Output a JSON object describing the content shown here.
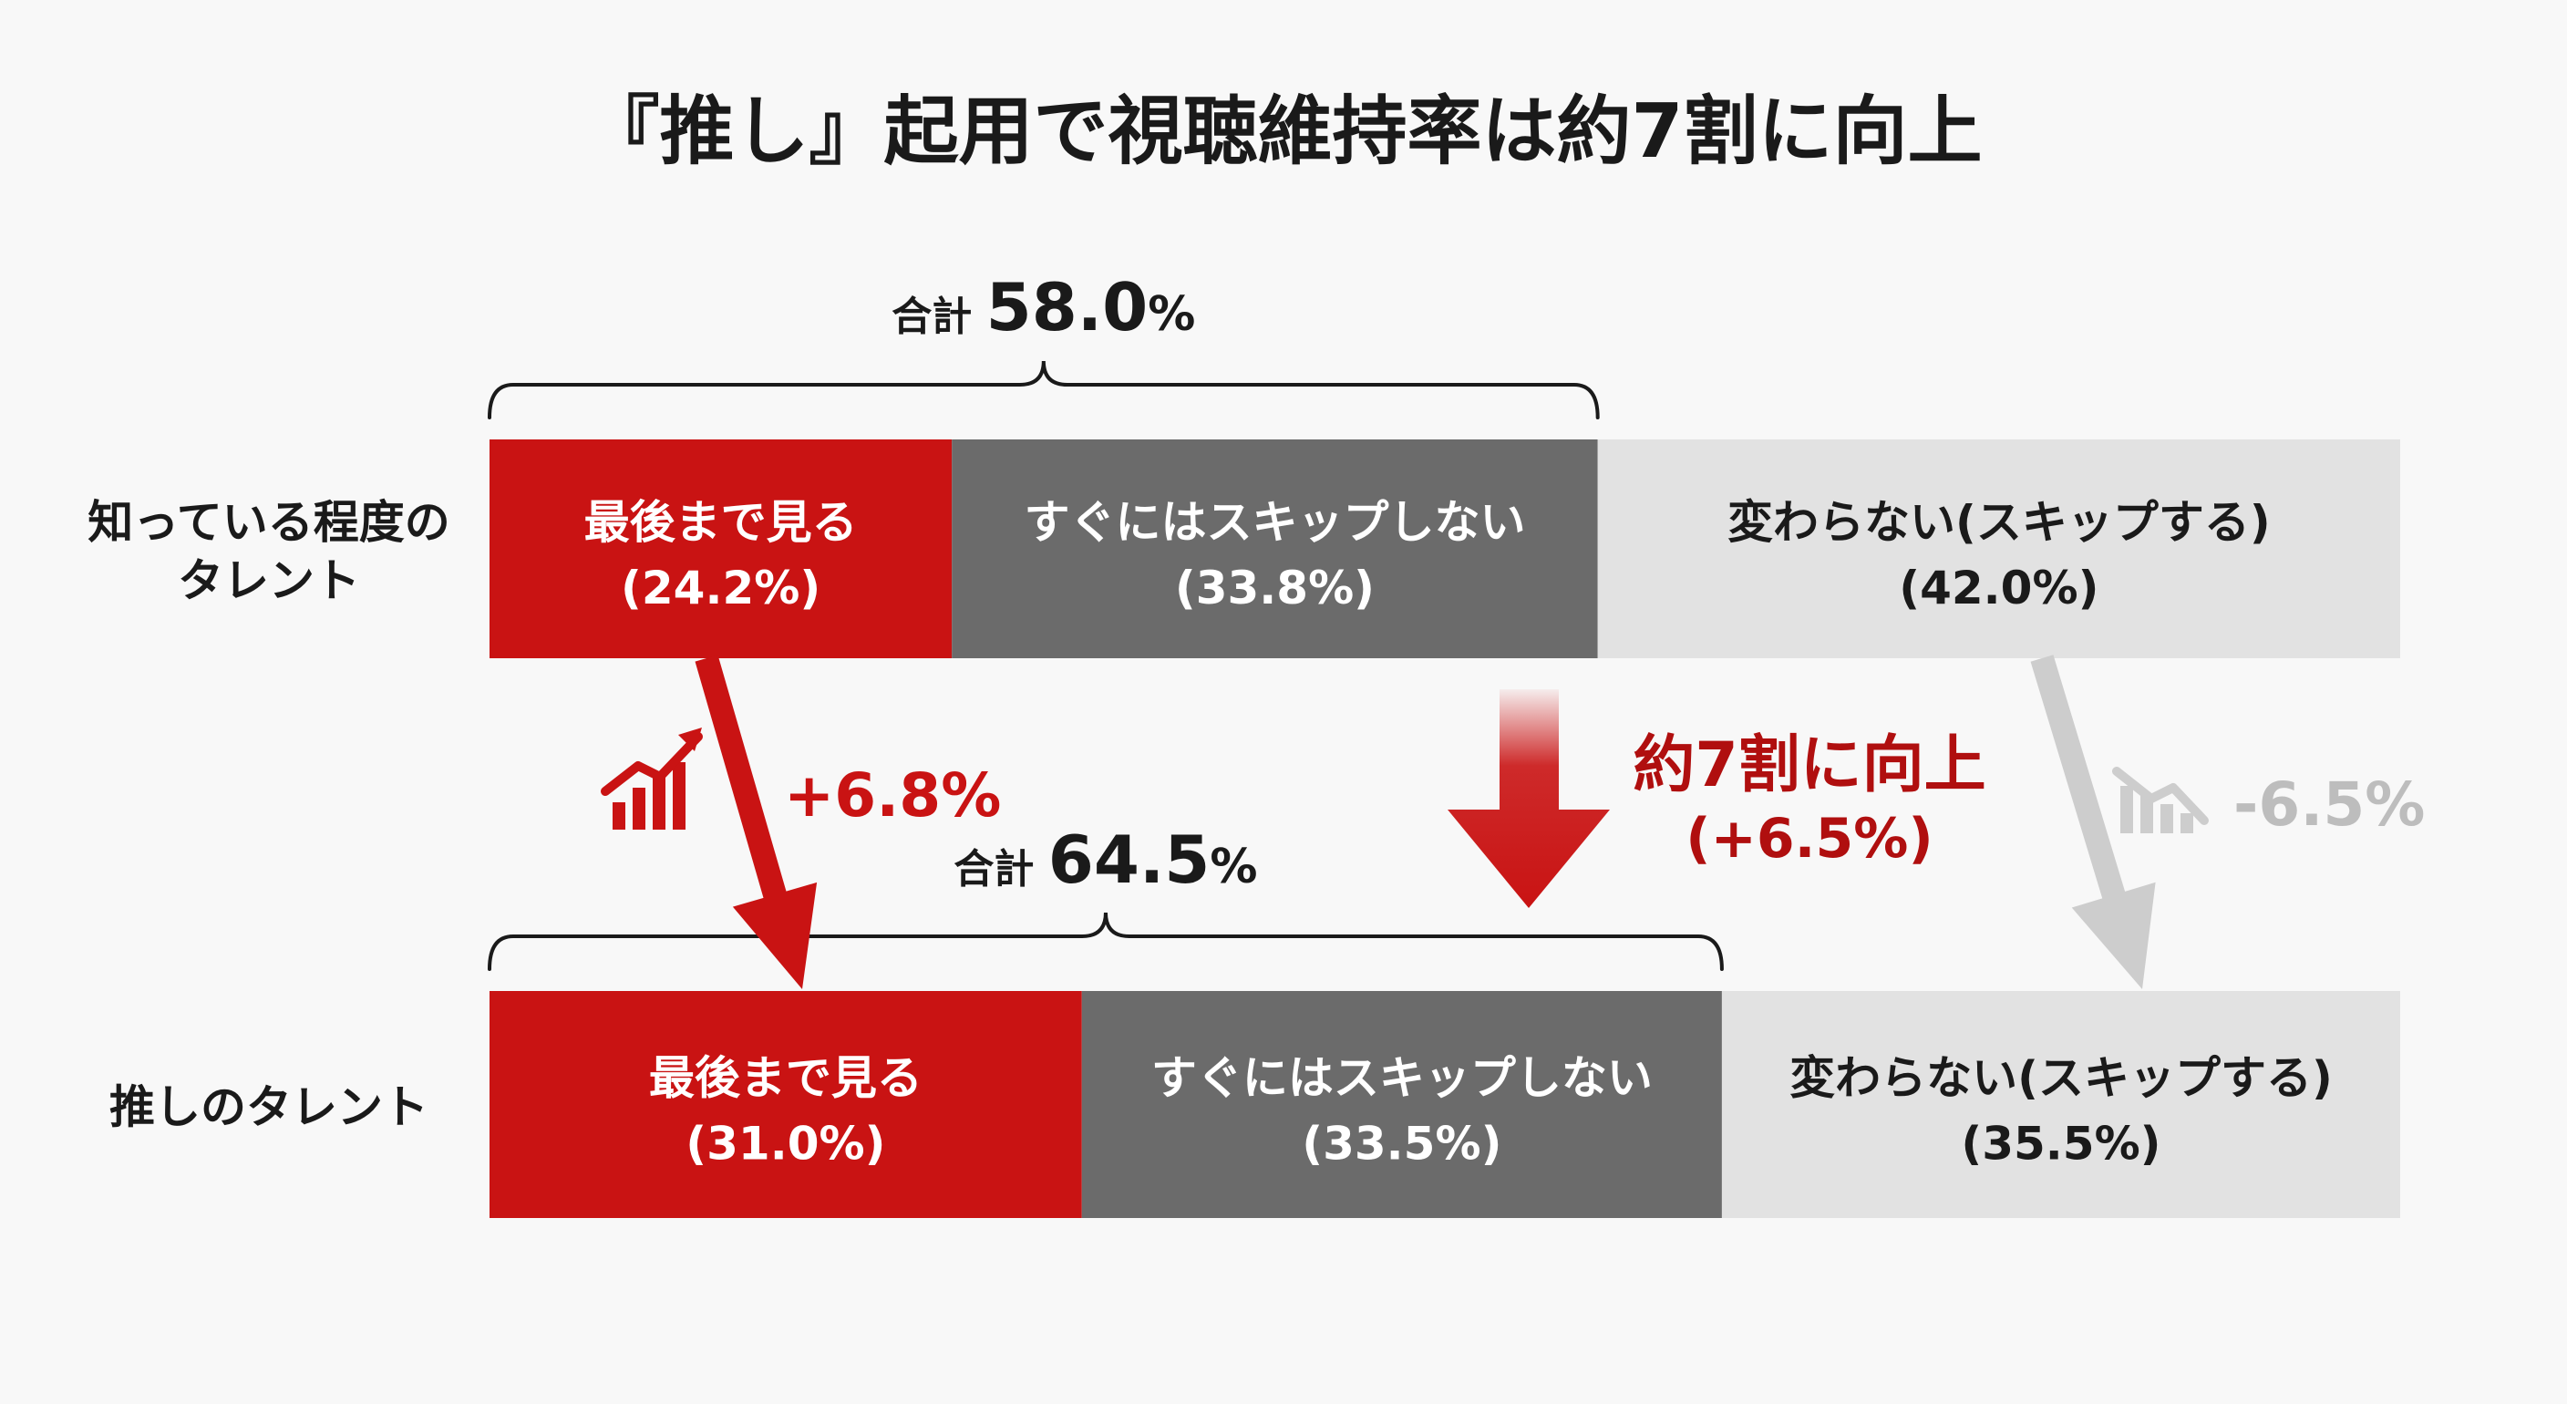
{
  "title": "『推し』起用で視聴維持率は約7割に向上",
  "colors": {
    "red": "#c91313",
    "dark_gray": "#6b6b6b",
    "light_gray": "#e2e2e2",
    "dark_red": "#b00f0f",
    "muted_gray": "#cdcdcd",
    "text_black": "#1a1a1a",
    "text_white": "#ffffff",
    "muted_text": "#bdbdbd"
  },
  "chart_data": {
    "type": "bar",
    "orientation": "horizontal",
    "stacked": true,
    "percent_stacked": true,
    "categories": [
      [
        "知っている程度の",
        "タレント"
      ],
      [
        "推しのタレント"
      ]
    ],
    "series": [
      {
        "name": "最後まで見る",
        "values": [
          24.2,
          31.0
        ],
        "value_labels": [
          "(24.2%)",
          "(31.0%)"
        ],
        "color": "#c91313",
        "text_color": "#ffffff"
      },
      {
        "name": "すぐにはスキップしない",
        "values": [
          33.8,
          33.5
        ],
        "value_labels": [
          "(33.8%)",
          "(33.5%)"
        ],
        "color": "#6b6b6b",
        "text_color": "#ffffff"
      },
      {
        "name": "変わらない(スキップする)",
        "values": [
          42.0,
          35.5
        ],
        "value_labels": [
          "(42.0%)",
          "(35.5%)"
        ],
        "color": "#e2e2e2",
        "text_color": "#1a1a1a"
      }
    ],
    "totals": [
      {
        "label": "合計",
        "value": "58.0",
        "unit": "%"
      },
      {
        "label": "合計",
        "value": "64.5",
        "unit": "%"
      }
    ],
    "xlim": [
      0,
      100
    ],
    "annotations": {
      "first_segment_change": "+6.8%",
      "center_callout_line1": "約7割に向上",
      "center_callout_line2": "(+6.5%)",
      "last_segment_change": "-6.5%"
    }
  }
}
